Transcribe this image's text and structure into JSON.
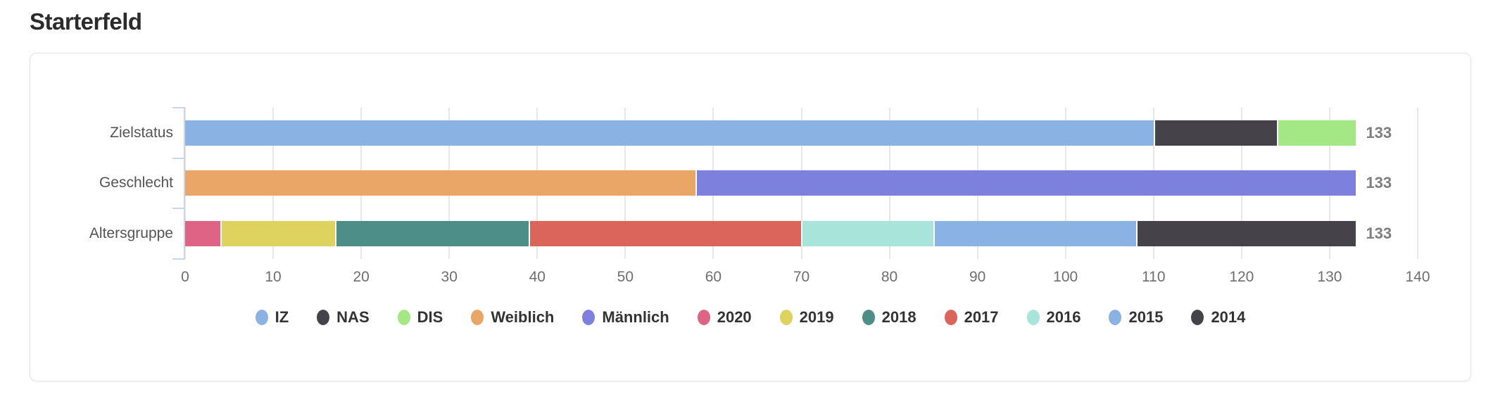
{
  "page": {
    "title": "Starterfeld"
  },
  "chart_data": {
    "type": "bar",
    "orientation": "horizontal",
    "stacked": true,
    "title": "Starterfeld",
    "xlabel": "",
    "ylabel": "",
    "xlim": [
      0,
      140
    ],
    "x_ticks": [
      0,
      10,
      20,
      30,
      40,
      50,
      60,
      70,
      80,
      90,
      100,
      110,
      120,
      130,
      140
    ],
    "grid": true,
    "legend_position": "bottom",
    "categories": [
      "Zielstatus",
      "Geschlecht",
      "Altersgruppe"
    ],
    "rows": [
      {
        "label": "Zielstatus",
        "total": 133,
        "segments": [
          {
            "name": "IZ",
            "value": 110,
            "color": "#8ab2e3"
          },
          {
            "name": "NAS",
            "value": 14,
            "color": "#454249"
          },
          {
            "name": "DIS",
            "value": 9,
            "color": "#a3e884"
          }
        ]
      },
      {
        "label": "Geschlecht",
        "total": 133,
        "segments": [
          {
            "name": "Weiblich",
            "value": 58,
            "color": "#eaa667"
          },
          {
            "name": "Männlich",
            "value": 75,
            "color": "#7d80dc"
          }
        ]
      },
      {
        "label": "Altersgruppe",
        "total": 133,
        "segments": [
          {
            "name": "2020",
            "value": 4,
            "color": "#de6384"
          },
          {
            "name": "2019",
            "value": 13,
            "color": "#ddd35e"
          },
          {
            "name": "2018",
            "value": 22,
            "color": "#4d8e89"
          },
          {
            "name": "2017",
            "value": 31,
            "color": "#dc655b"
          },
          {
            "name": "2016",
            "value": 15,
            "color": "#a8e4da"
          },
          {
            "name": "2015",
            "value": 23,
            "color": "#8ab2e3"
          },
          {
            "name": "2014",
            "value": 25,
            "color": "#454249"
          }
        ]
      }
    ],
    "legend": [
      {
        "label": "IZ",
        "color": "#8ab2e3"
      },
      {
        "label": "NAS",
        "color": "#454249"
      },
      {
        "label": "DIS",
        "color": "#a3e884"
      },
      {
        "label": "Weiblich",
        "color": "#eaa667"
      },
      {
        "label": "Männlich",
        "color": "#7d80dc"
      },
      {
        "label": "2020",
        "color": "#de6384"
      },
      {
        "label": "2019",
        "color": "#ddd35e"
      },
      {
        "label": "2018",
        "color": "#4d8e89"
      },
      {
        "label": "2017",
        "color": "#dc655b"
      },
      {
        "label": "2016",
        "color": "#a8e4da"
      },
      {
        "label": "2015",
        "color": "#8ab2e3"
      },
      {
        "label": "2014",
        "color": "#454249"
      }
    ],
    "style": {
      "gridline_color": "#e7e7e7",
      "y_axis_color": "#c9d5f1",
      "tick_text_color": "#6e6e6e",
      "category_text_color": "#545454",
      "total_text_color": "#7e7e7e"
    }
  }
}
